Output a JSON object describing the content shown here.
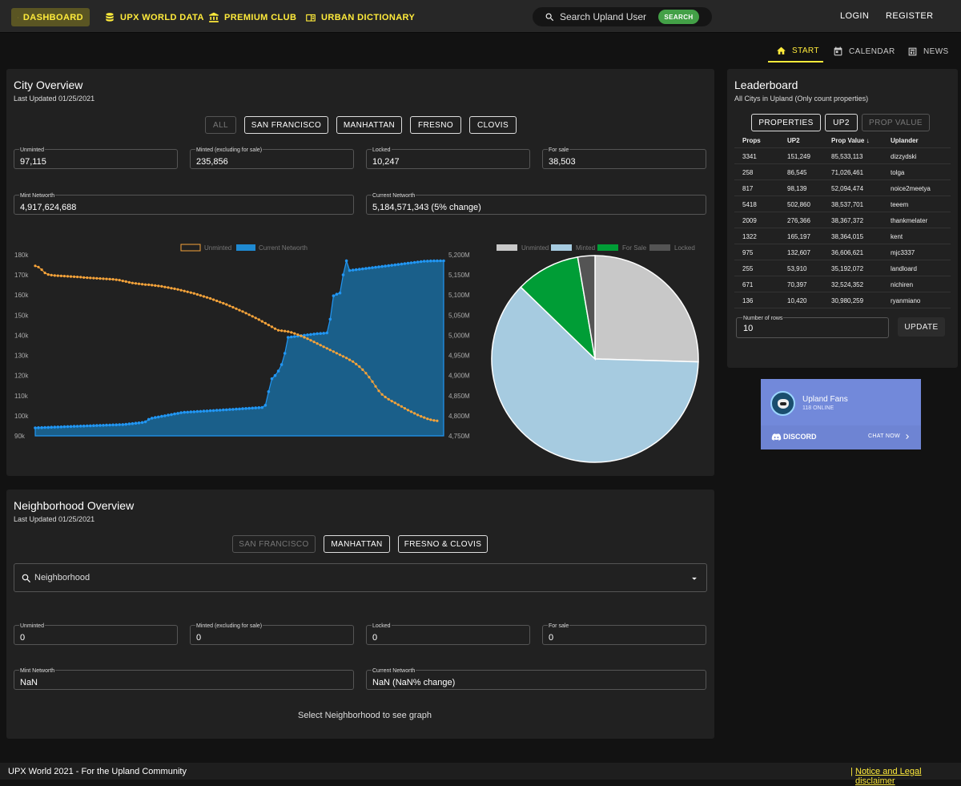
{
  "nav": {
    "items": [
      {
        "label": "DASHBOARD",
        "icon": "dashboard-icon"
      },
      {
        "label": "UPX WORLD DATA",
        "icon": "database-icon"
      },
      {
        "label": "PREMIUM CLUB",
        "icon": "bank-icon"
      },
      {
        "label": "URBAN DICTIONARY",
        "icon": "book-icon"
      }
    ],
    "search_placeholder": "Search Upland User",
    "search_button": "SEARCH",
    "login": "LOGIN",
    "register": "REGISTER"
  },
  "tabs": [
    {
      "label": "START",
      "icon": "home-icon"
    },
    {
      "label": "CALENDAR",
      "icon": "calendar-icon"
    },
    {
      "label": "NEWS",
      "icon": "news-icon"
    }
  ],
  "city": {
    "title": "City Overview",
    "updated": "Last Updated 01/25/2021",
    "filters": [
      "ALL",
      "SAN FRANCISCO",
      "MANHATTAN",
      "FRESNO",
      "CLOVIS"
    ],
    "fields": {
      "unminted_label": "Unminted",
      "unminted": "97,115",
      "minted_label": "Minted (excluding for sale)",
      "minted": "235,856",
      "locked_label": "Locked",
      "locked": "10,247",
      "forsale_label": "For sale",
      "forsale": "38,503",
      "mint_nw_label": "Mint Networth",
      "mint_nw": "4,917,624,688",
      "cur_nw_label": "Current Networth",
      "cur_nw": "5,184,571,343 (5% change)"
    }
  },
  "neighborhood": {
    "title": "Neighborhood Overview",
    "updated": "Last Updated 01/25/2021",
    "filters": [
      "SAN FRANCISCO",
      "MANHATTAN",
      "FRESNO & CLOVIS"
    ],
    "select_placeholder": "Neighborhood",
    "fields": {
      "unminted_label": "Unminted",
      "unminted": "0",
      "minted_label": "Minted (excluding for sale)",
      "minted": "0",
      "locked_label": "Locked",
      "locked": "0",
      "forsale_label": "For sale",
      "forsale": "0",
      "mint_nw_label": "Mint Networth",
      "mint_nw": "NaN",
      "cur_nw_label": "Current Networth",
      "cur_nw": "NaN (NaN% change)"
    },
    "empty_msg": "Select Neighborhood to see graph"
  },
  "leaderboard": {
    "title": "Leaderboard",
    "subtitle": "All Citys in Upland (Only count properties)",
    "buttons": [
      "PROPERTIES",
      "UP2",
      "PROP VALUE"
    ],
    "headers": [
      "Props",
      "UP2",
      "Prop Value",
      "Uplander"
    ],
    "rows": [
      [
        "3341",
        "151,249",
        "85,533,113",
        "dizzydski"
      ],
      [
        "258",
        "86,545",
        "71,026,461",
        "tolga"
      ],
      [
        "817",
        "98,139",
        "52,094,474",
        "noice2meetya"
      ],
      [
        "5418",
        "502,860",
        "38,537,701",
        "teeem"
      ],
      [
        "2009",
        "276,366",
        "38,367,372",
        "thankmelater"
      ],
      [
        "1322",
        "165,197",
        "38,364,015",
        "kent"
      ],
      [
        "975",
        "132,607",
        "36,606,621",
        "mjc3337"
      ],
      [
        "255",
        "53,910",
        "35,192,072",
        "landloard"
      ],
      [
        "671",
        "70,397",
        "32,524,352",
        "nichiren"
      ],
      [
        "136",
        "10,420",
        "30,980,259",
        "ryanmiano"
      ]
    ],
    "rows_label": "Number of rows",
    "rows_value": "10",
    "update": "UPDATE"
  },
  "discord": {
    "server": "Upland Fans",
    "online": "118 ONLINE",
    "brand": "DISCORD",
    "cta": "CHAT NOW"
  },
  "footer": {
    "left": "UPX World 2021 - For the Upland Community",
    "right": "Notice and Legal disclaimer"
  },
  "colors": {
    "accent": "#ffeb3b",
    "unminted": "#f5a33a",
    "networth": "#1f8ad2",
    "minted": "#a6cbe0",
    "for_sale": "#009d36",
    "locked": "#545454",
    "search": "#43a047"
  },
  "chart_data": [
    {
      "type": "line",
      "series": [
        {
          "name": "Unminted",
          "axis": "left",
          "values": [
            174500,
            173900,
            172600,
            171000,
            170200,
            169900,
            169700,
            169600,
            169500,
            169400,
            169300,
            169200,
            169100,
            169000,
            168900,
            168700,
            168600,
            168500,
            168400,
            168300,
            168200,
            168100,
            168000,
            167900,
            167800,
            167600,
            167400,
            167000,
            166700,
            166300,
            166000,
            165800,
            165600,
            165400,
            165200,
            165100,
            164900,
            164700,
            164500,
            164300,
            164000,
            163700,
            163400,
            163100,
            162800,
            162400,
            162000,
            161600,
            161200,
            160800,
            160300,
            159800,
            159300,
            158800,
            158300,
            157700,
            157100,
            156500,
            155900,
            155300,
            154600,
            153900,
            153200,
            152500,
            151800,
            151000,
            150200,
            149400,
            148600,
            147800,
            146900,
            146000,
            145100,
            144200,
            143300,
            142500,
            142300,
            142100,
            141800,
            141400,
            140900,
            140300,
            139700,
            139000,
            138300,
            137500,
            136700,
            135900,
            135100,
            134300,
            133500,
            132700,
            131900,
            131100,
            130300,
            129500,
            128700,
            127800,
            126900,
            125700,
            124400,
            122900,
            121200,
            119200,
            117000,
            114600,
            112400,
            110600,
            109300,
            108200,
            107300,
            106400,
            105500,
            104600,
            103700,
            102800,
            102000,
            101200,
            100400,
            99700,
            99100,
            98500,
            98000,
            97700,
            97500
          ]
        },
        {
          "name": "Current Networth",
          "axis": "right",
          "values": [
            4770000,
            4770300,
            4770600,
            4770900,
            4771200,
            4771500,
            4771800,
            4772100,
            4772400,
            4772700,
            4773000,
            4773300,
            4773600,
            4773900,
            4774200,
            4774500,
            4774800,
            4775100,
            4775400,
            4775700,
            4776000,
            4776300,
            4776600,
            4776900,
            4777200,
            4777500,
            4777800,
            4778100,
            4778700,
            4779600,
            4780500,
            4781400,
            4782300,
            4783200,
            4785000,
            4791000,
            4794000,
            4795500,
            4797000,
            4798500,
            4800000,
            4801500,
            4803000,
            4804500,
            4806000,
            4807500,
            4808500,
            4809000,
            4809500,
            4810000,
            4810500,
            4811000,
            4811500,
            4812000,
            4812500,
            4813000,
            4813500,
            4814000,
            4814500,
            4815000,
            4815500,
            4816000,
            4816500,
            4817000,
            4817500,
            4818000,
            4818500,
            4819000,
            4819500,
            4820000,
            4820500,
            4826000,
            4860000,
            4892000,
            4900000,
            4911000,
            4927000,
            4955000,
            4995000,
            4996000,
            4997000,
            4998000,
            4999000,
            5000000,
            5001000,
            5002000,
            5003000,
            5004000,
            5004500,
            5005000,
            5006000,
            5040000,
            5098000,
            5102000,
            5105000,
            5150000,
            5185000,
            5161000,
            5162000,
            5163000,
            5164000,
            5165000,
            5166000,
            5167000,
            5168000,
            5169000,
            5170000,
            5171000,
            5172000,
            5173000,
            5174000,
            5175000,
            5176000,
            5177000,
            5178000,
            5179000,
            5180000,
            5181000,
            5182000,
            5183000,
            5184000,
            5184300,
            5184600,
            5184800,
            5184900,
            5185000,
            5185000
          ]
        }
      ],
      "y_left": {
        "ticks": [
          "90k",
          "100k",
          "110k",
          "120k",
          "130k",
          "140k",
          "150k",
          "160k",
          "170k",
          "180k"
        ],
        "range": [
          90000,
          180000
        ]
      },
      "y_right": {
        "ticks": [
          "4,750M",
          "4,800M",
          "4,850M",
          "4,900M",
          "4,950M",
          "5,000M",
          "5,050M",
          "5,100M",
          "5,150M",
          "5,200M"
        ],
        "range": [
          4750000000,
          5200000000
        ]
      },
      "legend": [
        "Unminted",
        "Current Networth"
      ],
      "grid": false
    },
    {
      "type": "pie",
      "labels": [
        "Unminted",
        "Minted",
        "For Sale",
        "Locked"
      ],
      "values": [
        97115,
        235856,
        38503,
        10247
      ],
      "legend_position": "top"
    }
  ]
}
